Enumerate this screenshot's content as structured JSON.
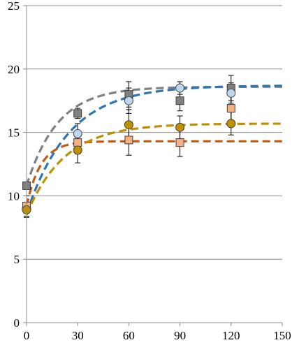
{
  "chart_data": {
    "type": "scatter",
    "title": "",
    "xlabel": "",
    "ylabel": "",
    "xlim": [
      0,
      150
    ],
    "ylim": [
      0,
      25
    ],
    "xticks": [
      0,
      30,
      60,
      90,
      120,
      150
    ],
    "yticks": [
      0,
      5,
      10,
      15,
      20,
      25
    ],
    "xtick_labels": [
      "0",
      "30",
      "60",
      "90",
      "120",
      "150"
    ],
    "ytick_labels": [
      "0",
      "5",
      "10",
      "15",
      "20",
      "25"
    ],
    "grid": "horizontal",
    "legend": "none",
    "series": [
      {
        "marker": "square",
        "color": "#808080",
        "x": [
          0,
          30,
          60,
          90,
          120
        ],
        "y": [
          10.8,
          16.5,
          18.0,
          17.5,
          18.5
        ],
        "err": [
          0.3,
          0.4,
          1.0,
          0.8,
          1.0
        ],
        "fit": {
          "color": "#808080",
          "a": 10.8,
          "b": 7.8,
          "k": 0.055
        }
      },
      {
        "marker": "circle",
        "color": "#bdd7ee",
        "x": [
          0,
          30,
          60,
          90,
          120
        ],
        "y": [
          9.0,
          14.9,
          17.5,
          18.5,
          18.1
        ],
        "err": [
          0.3,
          0.8,
          1.0,
          0.5,
          0.8
        ],
        "fit": {
          "color": "#2e75b6",
          "a": 8.6,
          "b": 10.1,
          "k": 0.04
        }
      },
      {
        "marker": "square",
        "color": "#f4b183",
        "x": [
          0,
          30,
          60,
          90,
          120
        ],
        "y": [
          9.2,
          14.2,
          14.4,
          14.2,
          16.9
        ],
        "err": [
          0.8,
          0.9,
          1.2,
          1.1,
          1.0
        ],
        "fit": {
          "color": "#c55a11",
          "a": 9.2,
          "b": 5.1,
          "k": 0.12
        }
      },
      {
        "marker": "circle",
        "color": "#bf9000",
        "x": [
          0,
          30,
          60,
          90,
          120
        ],
        "y": [
          8.9,
          13.6,
          15.6,
          15.4,
          15.7
        ],
        "err": [
          0.6,
          1.0,
          1.2,
          0.9,
          0.9
        ],
        "fit": {
          "color": "#bf9000",
          "a": 8.5,
          "b": 7.2,
          "k": 0.045
        }
      }
    ]
  }
}
